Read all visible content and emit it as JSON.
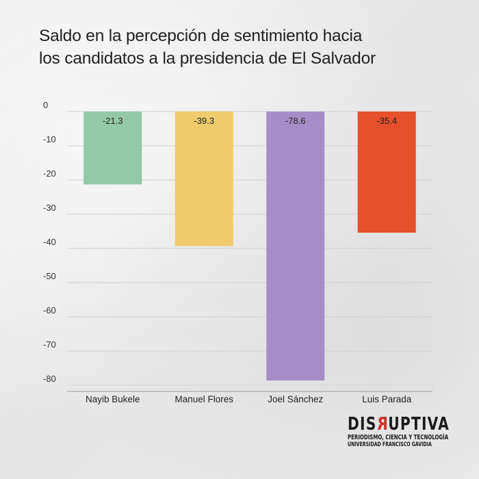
{
  "chart_data": {
    "type": "bar",
    "title": "Saldo en la percepción de sentimiento hacia los candidatos a la presidencia de El Salvador",
    "title_lines": [
      "Saldo en la percepción de sentimiento hacia",
      "los candidatos a la presidencia de El Salvador"
    ],
    "categories": [
      "Nayib Bukele",
      "Manuel Flores",
      "Joel Sánchez",
      "Luis Parada"
    ],
    "values": [
      -21.3,
      -39.3,
      -78.6,
      -35.4
    ],
    "data_labels": [
      "-21.3",
      "-39.3",
      "-78.6",
      "-35.4"
    ],
    "colors": [
      "#93c9a8",
      "#efcb6c",
      "#a58ec8",
      "#e5512a"
    ],
    "data_label_colors": [
      "#222222",
      "#222222",
      "#222222",
      "#ffffff"
    ],
    "yticks": [
      0,
      -10,
      -20,
      -30,
      -40,
      -50,
      -60,
      -70,
      -80
    ],
    "ytick_labels": [
      "0",
      "-10",
      "-20",
      "-30",
      "-40",
      "-50",
      "-60",
      "-70",
      "-80"
    ],
    "ylim": [
      -81,
      0
    ],
    "xlabel": "",
    "ylabel": "",
    "grid": true,
    "legend": "none"
  },
  "brand": {
    "name_start": "DIS",
    "name_accent": "R",
    "name_end": "UPTIVA",
    "line1": "PERIODISMO, CIENCIA Y TECNOLOGÍA",
    "line2": "UNIVERSIDAD FRANCISCO GAVIDIA",
    "accent_color": "#d0312d"
  }
}
